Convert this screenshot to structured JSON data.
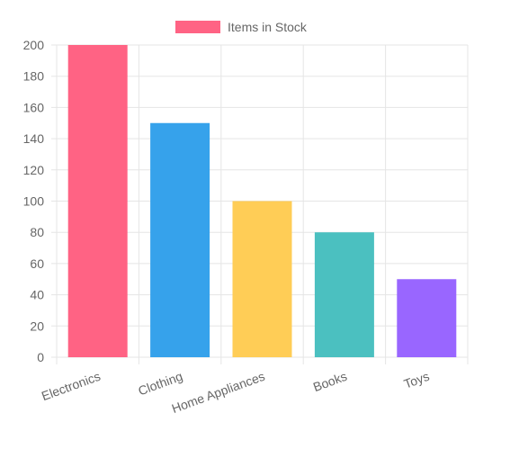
{
  "chart_data": {
    "type": "bar",
    "title": "",
    "xlabel": "",
    "ylabel": "",
    "categories": [
      "Electronics",
      "Clothing",
      "Home Appliances",
      "Books",
      "Toys"
    ],
    "series": [
      {
        "name": "Items in Stock",
        "values": [
          200,
          150,
          100,
          80,
          50
        ],
        "colors": [
          "#ff6384",
          "#36a2eb",
          "#ffcd56",
          "#4bc0c0",
          "#9966ff"
        ]
      }
    ],
    "ylim": [
      0,
      200
    ],
    "yticks": [
      0,
      20,
      40,
      60,
      80,
      100,
      120,
      140,
      160,
      180,
      200
    ],
    "grid": true,
    "legend_position": "top",
    "legend_color": "#ff6384",
    "x_tick_rotation_deg": -20
  }
}
